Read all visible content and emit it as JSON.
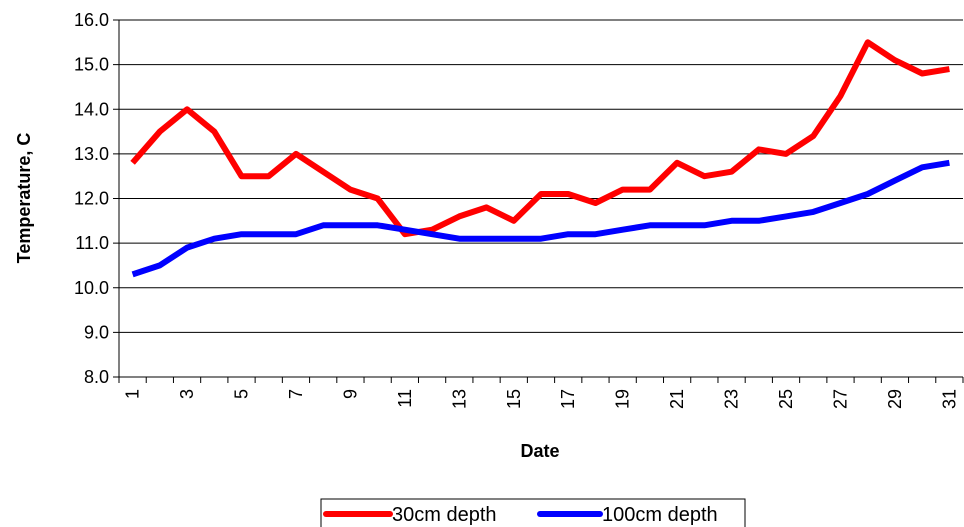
{
  "chart_data": {
    "type": "line",
    "title": "",
    "xlabel": "Date",
    "ylabel": "Temperature, C",
    "ylim": [
      8.0,
      16.0
    ],
    "y_ticks": [
      "8.0",
      "9.0",
      "10.0",
      "11.0",
      "12.0",
      "13.0",
      "14.0",
      "15.0",
      "16.0"
    ],
    "x_tick_labels": [
      "1",
      "3",
      "5",
      "7",
      "9",
      "11",
      "13",
      "15",
      "17",
      "19",
      "21",
      "23",
      "25",
      "27",
      "29",
      "31"
    ],
    "grid": "horizontal",
    "legend_position": "bottom",
    "x": [
      1,
      2,
      3,
      4,
      5,
      6,
      7,
      8,
      9,
      10,
      11,
      12,
      13,
      14,
      15,
      16,
      17,
      18,
      19,
      20,
      21,
      22,
      23,
      24,
      25,
      26,
      27,
      28,
      29,
      30,
      31
    ],
    "series": [
      {
        "name": "30cm depth",
        "color": "#ff0000",
        "values": [
          12.8,
          13.5,
          14.0,
          13.5,
          12.5,
          12.5,
          13.0,
          12.6,
          12.2,
          12.0,
          11.2,
          11.3,
          11.6,
          11.8,
          11.5,
          12.1,
          12.1,
          11.9,
          12.2,
          12.2,
          12.8,
          12.5,
          12.6,
          13.1,
          13.0,
          13.4,
          14.3,
          15.5,
          15.1,
          14.8,
          14.9
        ]
      },
      {
        "name": "100cm depth",
        "color": "#0000ff",
        "values": [
          10.3,
          10.5,
          10.9,
          11.1,
          11.2,
          11.2,
          11.2,
          11.4,
          11.4,
          11.4,
          11.3,
          11.2,
          11.1,
          11.1,
          11.1,
          11.1,
          11.2,
          11.2,
          11.3,
          11.4,
          11.4,
          11.4,
          11.5,
          11.5,
          11.6,
          11.7,
          11.9,
          12.1,
          12.4,
          12.7,
          12.8
        ]
      }
    ]
  }
}
